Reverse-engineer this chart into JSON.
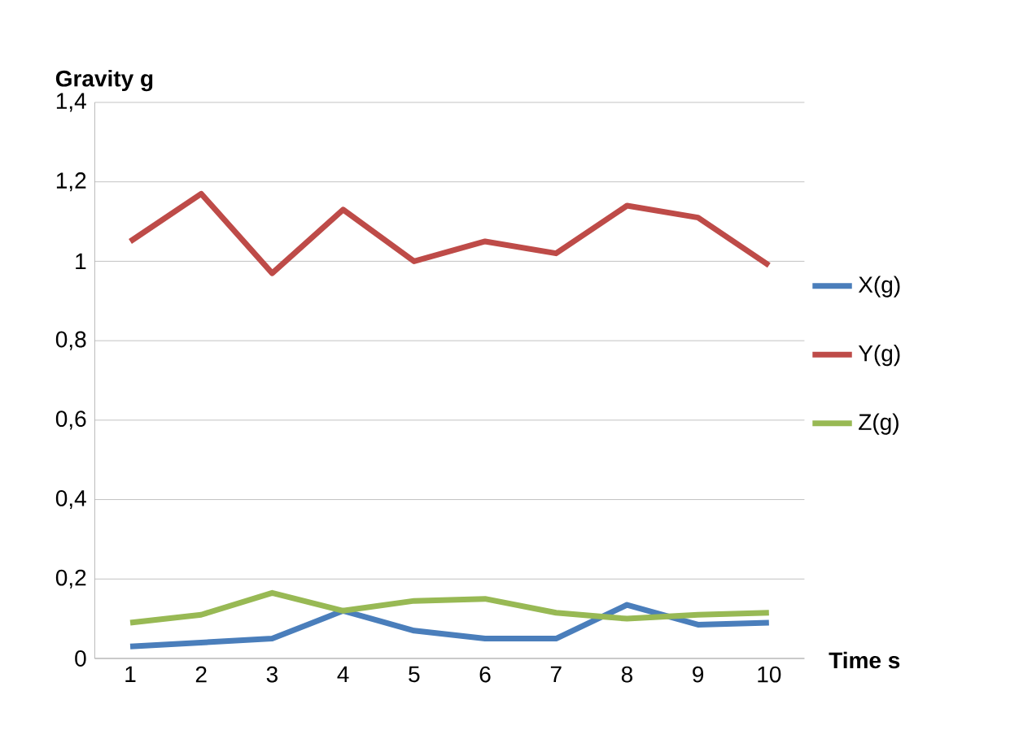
{
  "chart_data": {
    "type": "line",
    "xlabel": "Time s",
    "ylabel": "Gravity g",
    "categories": [
      "1",
      "2",
      "3",
      "4",
      "5",
      "6",
      "7",
      "8",
      "9",
      "10"
    ],
    "series": [
      {
        "name": "X(g)",
        "color": "#4a7ebb",
        "values": [
          0.03,
          0.04,
          0.05,
          0.12,
          0.07,
          0.05,
          0.05,
          0.135,
          0.085,
          0.09
        ]
      },
      {
        "name": "Y(g)",
        "color": "#be4b48",
        "values": [
          1.05,
          1.17,
          0.97,
          1.13,
          1.0,
          1.05,
          1.02,
          1.14,
          1.11,
          0.99
        ]
      },
      {
        "name": "Z(g)",
        "color": "#98b954",
        "values": [
          0.09,
          0.11,
          0.165,
          0.12,
          0.145,
          0.15,
          0.115,
          0.1,
          0.11,
          0.115
        ]
      }
    ],
    "ylim": [
      0,
      1.4
    ],
    "yticks": [
      0,
      {
        "value": 0.2,
        "label": "0,2"
      },
      {
        "value": 0.4,
        "label": "0,4"
      },
      {
        "value": 0.6,
        "label": "0,6"
      },
      {
        "value": 0.8,
        "label": "0,8"
      },
      1,
      {
        "value": 1.2,
        "label": "1,2"
      },
      {
        "value": 1.4,
        "label": "1,4"
      }
    ],
    "grid": "y",
    "legend": "right",
    "marker": "none",
    "line_style": "solid"
  }
}
